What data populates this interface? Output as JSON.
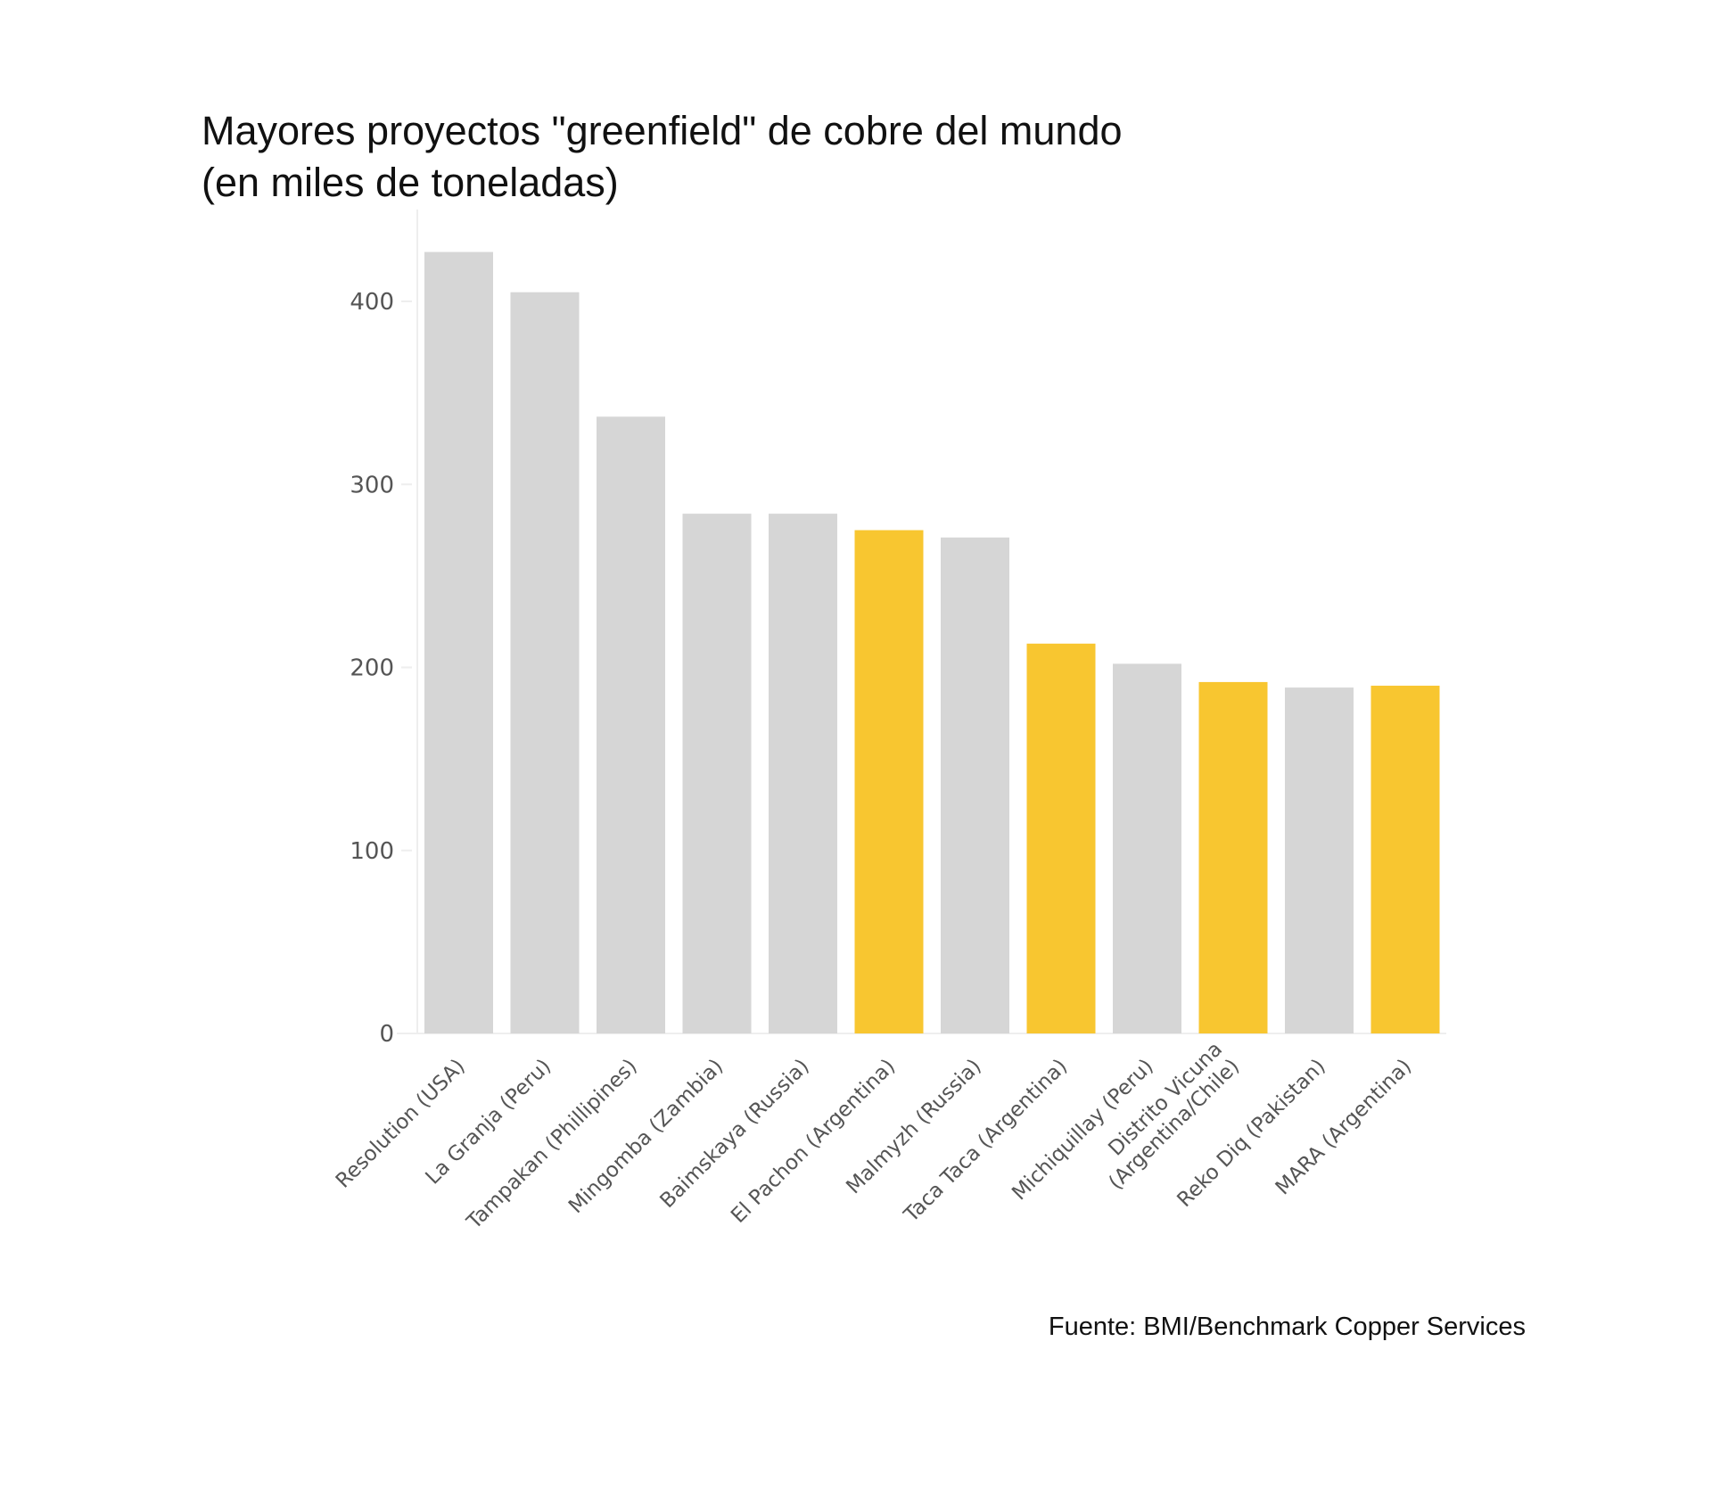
{
  "chart_data": {
    "type": "bar",
    "title": "Mayores proyectos \"greenfield\" de cobre del mundo",
    "subtitle": "(en miles de toneladas)",
    "xlabel": "",
    "ylabel": "",
    "ylim": [
      0,
      450
    ],
    "yticks": [
      0,
      100,
      200,
      300,
      400
    ],
    "grid": false,
    "categories": [
      "Resolution (USA)",
      "La Granja (Peru)",
      "Tampakan (Phillipines)",
      "Mingomba (Zambia)",
      "Baimskaya (Russia)",
      "El Pachon (Argentina)",
      "Malmyzh (Russia)",
      "Taca Taca (Argentina)",
      "Michiquillay (Peru)",
      "Distrito Vicuna\n(Argentina/Chile)",
      "Reko Diq (Pakistan)",
      "MARA (Argentina)"
    ],
    "values": [
      427,
      405,
      337,
      284,
      284,
      275,
      271,
      213,
      202,
      192,
      189,
      190
    ],
    "highlighted": [
      false,
      false,
      false,
      false,
      false,
      true,
      false,
      true,
      false,
      true,
      false,
      true
    ],
    "colors": {
      "default": "#d6d6d6",
      "highlight": "#f8c630"
    },
    "source": "Fuente: BMI/Benchmark Copper Services"
  }
}
